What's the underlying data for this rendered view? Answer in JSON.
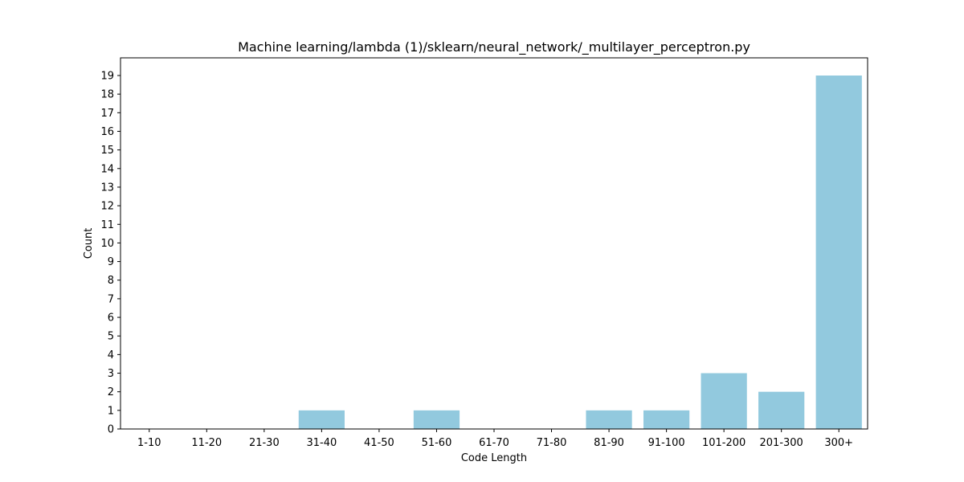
{
  "chart_data": {
    "type": "bar",
    "title": "Machine learning/lambda (1)/sklearn/neural_network/_multilayer_perceptron.py",
    "xlabel": "Code Length",
    "ylabel": "Count",
    "categories": [
      "1-10",
      "11-20",
      "21-30",
      "31-40",
      "41-50",
      "51-60",
      "61-70",
      "71-80",
      "81-90",
      "91-100",
      "101-200",
      "201-300",
      "300+"
    ],
    "values": [
      0,
      0,
      0,
      1,
      0,
      1,
      0,
      0,
      1,
      1,
      3,
      2,
      19
    ],
    "ylim": [
      0,
      19.95
    ],
    "yticks": [
      0,
      1,
      2,
      3,
      4,
      5,
      6,
      7,
      8,
      9,
      10,
      11,
      12,
      13,
      14,
      15,
      16,
      17,
      18,
      19
    ],
    "grid": false,
    "colors": {
      "bar": "#92c9de",
      "axis": "#000000",
      "background": "#ffffff"
    }
  }
}
